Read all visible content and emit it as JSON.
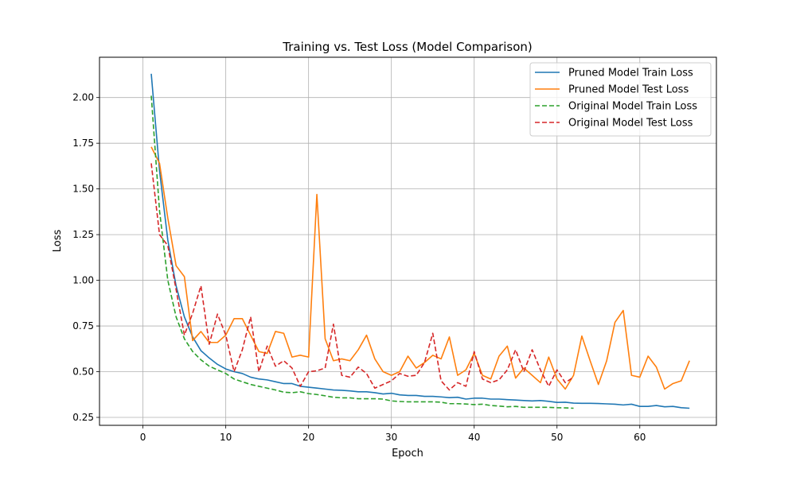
{
  "chart_data": {
    "type": "line",
    "title": "Training vs. Test Loss (Model Comparison)",
    "xlabel": "Epoch",
    "ylabel": "Loss",
    "xlim": [
      -5.25,
      69.25
    ],
    "ylim": [
      0.2065,
      2.2205
    ],
    "xticks": [
      0,
      10,
      20,
      30,
      40,
      50,
      60
    ],
    "yticks": [
      0.25,
      0.5,
      0.75,
      1.0,
      1.25,
      1.5,
      1.75,
      2.0
    ],
    "xtick_labels": [
      "0",
      "10",
      "20",
      "30",
      "40",
      "50",
      "60"
    ],
    "ytick_labels": [
      "0.25",
      "0.50",
      "0.75",
      "1.00",
      "1.25",
      "1.50",
      "1.75",
      "2.00"
    ],
    "grid": true,
    "legend_position": "top-right",
    "series": [
      {
        "name": "Pruned Model Train Loss",
        "color": "#1f77b4",
        "dash": "solid",
        "x": [
          1,
          2,
          3,
          4,
          5,
          6,
          7,
          8,
          9,
          10,
          11,
          12,
          13,
          14,
          15,
          16,
          17,
          18,
          19,
          20,
          21,
          22,
          23,
          24,
          25,
          26,
          27,
          28,
          29,
          30,
          31,
          32,
          33,
          34,
          35,
          36,
          37,
          38,
          39,
          40,
          41,
          42,
          43,
          44,
          45,
          46,
          47,
          48,
          49,
          50,
          51,
          52,
          53,
          54,
          55,
          56,
          57,
          58,
          59,
          60,
          61,
          62,
          63,
          64,
          65,
          66
        ],
        "y": [
          2.13,
          1.6,
          1.22,
          0.97,
          0.8,
          0.69,
          0.615,
          0.575,
          0.54,
          0.515,
          0.5,
          0.49,
          0.47,
          0.46,
          0.455,
          0.445,
          0.435,
          0.435,
          0.42,
          0.415,
          0.41,
          0.405,
          0.4,
          0.398,
          0.395,
          0.39,
          0.39,
          0.385,
          0.378,
          0.382,
          0.373,
          0.37,
          0.37,
          0.365,
          0.365,
          0.362,
          0.358,
          0.36,
          0.35,
          0.355,
          0.355,
          0.35,
          0.35,
          0.347,
          0.345,
          0.342,
          0.34,
          0.342,
          0.338,
          0.332,
          0.333,
          0.328,
          0.327,
          0.327,
          0.326,
          0.324,
          0.322,
          0.318,
          0.322,
          0.31,
          0.31,
          0.315,
          0.308,
          0.31,
          0.303,
          0.3
        ]
      },
      {
        "name": "Pruned Model Test Loss",
        "color": "#ff7f0e",
        "dash": "solid",
        "x": [
          1,
          2,
          3,
          4,
          5,
          6,
          7,
          8,
          9,
          10,
          11,
          12,
          13,
          14,
          15,
          16,
          17,
          18,
          19,
          20,
          21,
          22,
          23,
          24,
          25,
          26,
          27,
          28,
          29,
          30,
          31,
          32,
          33,
          34,
          35,
          36,
          37,
          38,
          39,
          40,
          41,
          42,
          43,
          44,
          45,
          46,
          47,
          48,
          49,
          50,
          51,
          52,
          53,
          54,
          55,
          56,
          57,
          58,
          59,
          60,
          61,
          62,
          63,
          64,
          65,
          66
        ],
        "y": [
          1.73,
          1.64,
          1.34,
          1.08,
          1.02,
          0.67,
          0.72,
          0.66,
          0.66,
          0.7,
          0.79,
          0.79,
          0.7,
          0.61,
          0.6,
          0.72,
          0.71,
          0.58,
          0.59,
          0.58,
          1.47,
          0.68,
          0.56,
          0.57,
          0.56,
          0.62,
          0.7,
          0.57,
          0.5,
          0.48,
          0.5,
          0.585,
          0.52,
          0.55,
          0.59,
          0.57,
          0.69,
          0.48,
          0.51,
          0.6,
          0.48,
          0.46,
          0.585,
          0.64,
          0.465,
          0.52,
          0.48,
          0.44,
          0.58,
          0.46,
          0.405,
          0.48,
          0.695,
          0.56,
          0.43,
          0.56,
          0.77,
          0.835,
          0.48,
          0.47,
          0.585,
          0.525,
          0.405,
          0.435,
          0.45,
          0.56
        ]
      },
      {
        "name": "Original Model Train Loss",
        "color": "#2ca02c",
        "dash": "dashed",
        "x": [
          1,
          2,
          3,
          4,
          5,
          6,
          7,
          8,
          9,
          10,
          11,
          12,
          13,
          14,
          15,
          16,
          17,
          18,
          19,
          20,
          21,
          22,
          23,
          24,
          25,
          26,
          27,
          28,
          29,
          30,
          31,
          32,
          33,
          34,
          35,
          36,
          37,
          38,
          39,
          40,
          41,
          42,
          43,
          44,
          45,
          46,
          47,
          48,
          49,
          50,
          51,
          52
        ],
        "y": [
          2.01,
          1.38,
          1.0,
          0.8,
          0.68,
          0.61,
          0.565,
          0.53,
          0.51,
          0.49,
          0.46,
          0.445,
          0.43,
          0.42,
          0.41,
          0.4,
          0.388,
          0.385,
          0.39,
          0.38,
          0.375,
          0.368,
          0.36,
          0.357,
          0.357,
          0.352,
          0.352,
          0.352,
          0.35,
          0.34,
          0.337,
          0.335,
          0.335,
          0.335,
          0.335,
          0.333,
          0.325,
          0.325,
          0.323,
          0.32,
          0.322,
          0.315,
          0.312,
          0.308,
          0.31,
          0.305,
          0.305,
          0.305,
          0.305,
          0.303,
          0.302,
          0.3
        ]
      },
      {
        "name": "Original Model Test Loss",
        "color": "#d62728",
        "dash": "dashed",
        "x": [
          1,
          2,
          3,
          4,
          5,
          6,
          7,
          8,
          9,
          10,
          11,
          12,
          13,
          14,
          15,
          16,
          17,
          18,
          19,
          20,
          21,
          22,
          23,
          24,
          25,
          26,
          27,
          28,
          29,
          30,
          31,
          32,
          33,
          34,
          35,
          36,
          37,
          38,
          39,
          40,
          41,
          42,
          43,
          44,
          45,
          46,
          47,
          48,
          49,
          50,
          51,
          52
        ],
        "y": [
          1.64,
          1.25,
          1.19,
          0.95,
          0.7,
          0.82,
          0.97,
          0.65,
          0.815,
          0.7,
          0.5,
          0.62,
          0.8,
          0.5,
          0.64,
          0.53,
          0.56,
          0.52,
          0.42,
          0.5,
          0.505,
          0.52,
          0.76,
          0.48,
          0.47,
          0.525,
          0.49,
          0.41,
          0.43,
          0.45,
          0.49,
          0.475,
          0.48,
          0.55,
          0.71,
          0.45,
          0.4,
          0.44,
          0.42,
          0.61,
          0.46,
          0.44,
          0.455,
          0.51,
          0.62,
          0.5,
          0.62,
          0.51,
          0.42,
          0.51,
          0.44,
          0.47
        ]
      }
    ]
  }
}
